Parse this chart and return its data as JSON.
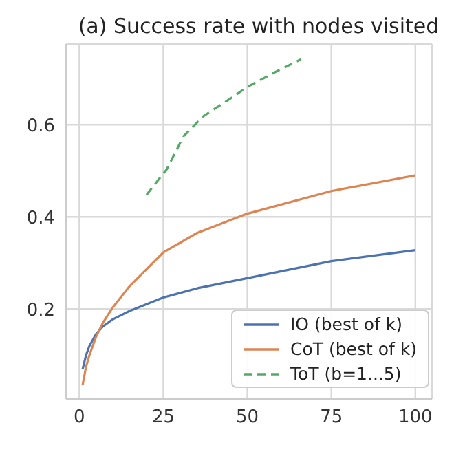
{
  "chart_data": {
    "type": "line",
    "title": "(a) Success rate with nodes visited",
    "xlim": [
      -3.95,
      104.95
    ],
    "xticks": [
      0,
      25,
      50,
      75,
      100
    ],
    "ylim": [
      0.005,
      0.775
    ],
    "yticks": [
      0.2,
      0.4,
      0.6
    ],
    "grid": true,
    "legend": "bottom right",
    "marker": "none",
    "series": [
      {
        "name": "IO (best of k)",
        "color": "#4c72b0",
        "line_style": "solid",
        "x": [
          1,
          2,
          3,
          5,
          7,
          10,
          15,
          25,
          35,
          50,
          75,
          100
        ],
        "values": [
          0.07,
          0.1,
          0.12,
          0.146,
          0.162,
          0.178,
          0.196,
          0.225,
          0.245,
          0.267,
          0.304,
          0.328
        ]
      },
      {
        "name": "CoT (best of k)",
        "color": "#dd8452",
        "line_style": "solid",
        "x": [
          1,
          2,
          3,
          5,
          7,
          10,
          15,
          25,
          35,
          50,
          75,
          100
        ],
        "values": [
          0.036,
          0.075,
          0.1,
          0.14,
          0.17,
          0.204,
          0.25,
          0.323,
          0.365,
          0.407,
          0.456,
          0.49
        ]
      },
      {
        "name": "ToT (b=1...5)",
        "color": "#55a868",
        "line_style": "dashed",
        "x": [
          20,
          26,
          31,
          37,
          44,
          50,
          58,
          66
        ],
        "values": [
          0.448,
          0.503,
          0.575,
          0.619,
          0.652,
          0.682,
          0.713,
          0.742
        ]
      }
    ]
  }
}
